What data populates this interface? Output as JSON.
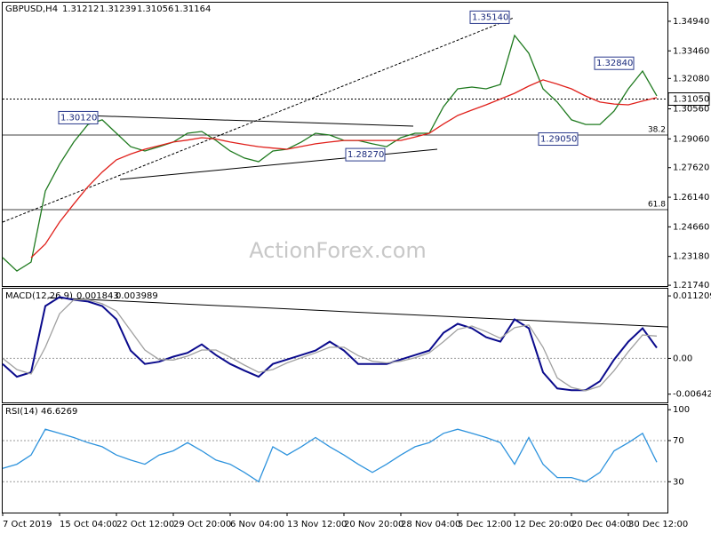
{
  "chart_data": [
    {
      "type": "line",
      "title": "GBPUSD,H4",
      "ohlc": [
        1.31212,
        1.31239,
        1.31056,
        1.31164
      ],
      "x": [
        0,
        1,
        2,
        3,
        4,
        5,
        6,
        7,
        8,
        9,
        10,
        11,
        12,
        13,
        14,
        15,
        16,
        17,
        18,
        19,
        20,
        21,
        22,
        23,
        24,
        25,
        26,
        27,
        28,
        29,
        30,
        31,
        32,
        33,
        34,
        35,
        36,
        37,
        38,
        39,
        40,
        41,
        42,
        43,
        44,
        45,
        46
      ],
      "xlim": [
        0,
        46.75
      ],
      "ylim": [
        1.217,
        1.3587
      ],
      "yticks": [
        {
          "value": 1.3494,
          "label": "1.34940"
        },
        {
          "value": 1.3346,
          "label": "1.33460"
        },
        {
          "value": 1.3208,
          "label": "1.32080"
        },
        {
          "value": 1.3056,
          "label": "1.30560"
        },
        {
          "value": 1.2906,
          "label": "1.29060"
        },
        {
          "value": 1.2762,
          "label": "1.27620"
        },
        {
          "value": 1.2614,
          "label": "1.26140"
        },
        {
          "value": 1.2466,
          "label": "1.24660"
        },
        {
          "value": 1.2318,
          "label": "1.23180"
        },
        {
          "value": 1.2174,
          "label": "1.21740"
        }
      ],
      "series": [
        {
          "name": "GBPUSD",
          "color": "#1f7a1f",
          "values": [
            1.2312,
            1.2245,
            1.229,
            1.2645,
            1.2779,
            1.289,
            1.2978,
            1.3001,
            1.2934,
            1.2867,
            1.2845,
            1.2867,
            1.289,
            1.2934,
            1.2943,
            1.2898,
            1.2845,
            1.281,
            1.2792,
            1.2845,
            1.2854,
            1.289,
            1.2934,
            1.2925,
            1.2898,
            1.2898,
            1.2881,
            1.2867,
            1.2912,
            1.2934,
            1.2934,
            1.3067,
            1.3156,
            1.3165,
            1.3156,
            1.3178,
            1.3423,
            1.3334,
            1.3156,
            1.309,
            1.3001,
            1.2978,
            1.2978,
            1.3045,
            1.3156,
            1.3245,
            1.3121
          ]
        },
        {
          "name": "SMA",
          "color": "#e0201b",
          "values": [
            null,
            null,
            1.2312,
            1.238,
            1.249,
            1.258,
            1.2667,
            1.274,
            1.2801,
            1.283,
            1.2854,
            1.2872,
            1.289,
            1.29,
            1.2912,
            1.2905,
            1.289,
            1.2878,
            1.2867,
            1.286,
            1.2854,
            1.2868,
            1.2881,
            1.289,
            1.2898,
            1.2898,
            1.2898,
            1.2898,
            1.2898,
            1.2915,
            1.2934,
            1.298,
            1.3023,
            1.305,
            1.3076,
            1.3105,
            1.3134,
            1.317,
            1.3201,
            1.318,
            1.3156,
            1.312,
            1.309,
            1.308,
            1.3076,
            1.3095,
            1.3112
          ]
        }
      ],
      "last_price": {
        "value": 1.3105,
        "label": "1.31050"
      },
      "annotations": [
        {
          "value": 1.3012,
          "label": "1.30120"
        },
        {
          "value": 1.3514,
          "label": "1.35140"
        },
        {
          "value": 1.3284,
          "label": "1.32840"
        },
        {
          "value": 1.2905,
          "label": "1.29050"
        },
        {
          "value": 1.2827,
          "label": "1.28270"
        }
      ],
      "fib_levels": [
        {
          "label": "38.2",
          "price": 1.2925
        },
        {
          "label": "61.8",
          "price": 1.2552
        }
      ],
      "watermark": "ActionForex.com"
    },
    {
      "type": "line",
      "title": "MACD(12,26,9)",
      "readings": [
        0.001843,
        0.003989
      ],
      "x": [
        0,
        1,
        2,
        3,
        4,
        5,
        6,
        7,
        8,
        9,
        10,
        11,
        12,
        13,
        14,
        15,
        16,
        17,
        18,
        19,
        20,
        21,
        22,
        23,
        24,
        25,
        26,
        27,
        28,
        29,
        30,
        31,
        32,
        33,
        34,
        35,
        36,
        37,
        38,
        39,
        40,
        41,
        42,
        43,
        44,
        45,
        46
      ],
      "xlim": [
        0,
        46.75
      ],
      "ylim": [
        -0.0079,
        0.0125
      ],
      "yticks": [
        0.011209,
        {
          "value": 0,
          "label": "0.00"
        },
        -0.00642
      ],
      "ref_lines": [
        0
      ],
      "series": [
        {
          "name": "MACD",
          "color": "#0a0a8c",
          "values": [
            -0.001,
            -0.0033,
            -0.0025,
            0.0094,
            0.011,
            0.0105,
            0.0102,
            0.0094,
            0.007,
            0.0014,
            -0.001,
            -0.0006,
            0.0003,
            0.001,
            0.0025,
            0.0006,
            -0.001,
            -0.0022,
            -0.0033,
            -0.001,
            -0.0002,
            0.0006,
            0.0014,
            0.003,
            0.0014,
            -0.001,
            -0.001,
            -0.001,
            -0.0002,
            0.0006,
            0.0014,
            0.0046,
            0.0062,
            0.0054,
            0.0038,
            0.003,
            0.007,
            0.0054,
            -0.0025,
            -0.0054,
            -0.0057,
            -0.0057,
            -0.0041,
            -0.0002,
            0.003,
            0.0054,
            0.0019
          ]
        },
        {
          "name": "Signal",
          "color": "#a0a0a0",
          "values": [
            0,
            -0.002,
            -0.0028,
            0.002,
            0.008,
            0.0105,
            0.0105,
            0.0098,
            0.0085,
            0.005,
            0.0015,
            -0.0002,
            -0.0003,
            0.0004,
            0.0015,
            0.0015,
            0.0002,
            -0.0012,
            -0.0025,
            -0.002,
            -0.0008,
            0.0001,
            0.001,
            0.002,
            0.002,
            0.0005,
            -0.0005,
            -0.0008,
            -0.0005,
            0.0001,
            0.001,
            0.003,
            0.0052,
            0.0058,
            0.0048,
            0.0036,
            0.0055,
            0.006,
            0.002,
            -0.0035,
            -0.0052,
            -0.0058,
            -0.005,
            -0.0022,
            0.0012,
            0.0042,
            0.004
          ]
        }
      ]
    },
    {
      "type": "line",
      "title": "RSI(14)",
      "readings": [
        46.6269
      ],
      "x": [
        0,
        1,
        2,
        3,
        4,
        5,
        6,
        7,
        8,
        9,
        10,
        11,
        12,
        13,
        14,
        15,
        16,
        17,
        18,
        19,
        20,
        21,
        22,
        23,
        24,
        25,
        26,
        27,
        28,
        29,
        30,
        31,
        32,
        33,
        34,
        35,
        36,
        37,
        38,
        39,
        40,
        41,
        42,
        43,
        44,
        45,
        46
      ],
      "xlim": [
        0,
        46.75
      ],
      "ylim": [
        0,
        104.5
      ],
      "yticks": [
        100,
        70,
        30
      ],
      "ref_lines": [
        70,
        30
      ],
      "xticks": [
        {
          "value": 0,
          "label": "7 Oct 2019"
        },
        {
          "value": 4,
          "label": "15 Oct 04:00"
        },
        {
          "value": 8,
          "label": "22 Oct 12:00"
        },
        {
          "value": 12,
          "label": "29 Oct 20:00"
        },
        {
          "value": 16,
          "label": "6 Nov 04:00"
        },
        {
          "value": 20,
          "label": "13 Nov 12:00"
        },
        {
          "value": 24,
          "label": "20 Nov 20:00"
        },
        {
          "value": 28,
          "label": "28 Nov 04:00"
        },
        {
          "value": 32,
          "label": "5 Dec 12:00"
        },
        {
          "value": 36,
          "label": "12 Dec 20:00"
        },
        {
          "value": 40,
          "label": "20 Dec 04:00"
        },
        {
          "value": 44,
          "label": "30 Dec 12:00"
        }
      ],
      "series": [
        {
          "name": "RSI",
          "color": "#2e93dd",
          "values": [
            43,
            47,
            56,
            81,
            77,
            73,
            68,
            64,
            56,
            51,
            47,
            56,
            60,
            68,
            60,
            51,
            47,
            39,
            30,
            64,
            56,
            64,
            73,
            64,
            56,
            47,
            39,
            47,
            56,
            64,
            68,
            77,
            81,
            77,
            73,
            68,
            47,
            73,
            47,
            34,
            34,
            30,
            39,
            60,
            68,
            77,
            49
          ]
        }
      ]
    }
  ]
}
